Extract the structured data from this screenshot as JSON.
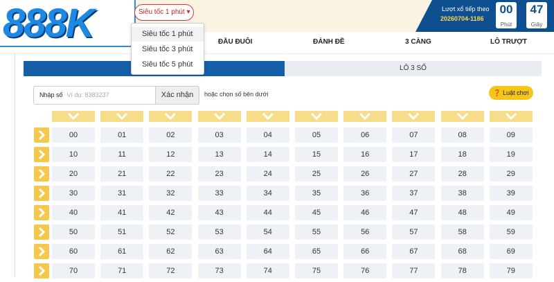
{
  "logo": {
    "text": "888K"
  },
  "dropdown": {
    "selected": "Siêu tốc 1 phút",
    "options": [
      "Siêu tốc 1 phút",
      "Siêu tốc 3 phút",
      "Siêu tốc 5 phút"
    ]
  },
  "countdown": {
    "label": "Lượt xổ tiếp theo",
    "draw_id": "20260704-1186",
    "minutes": "00",
    "minutes_label": "Phút",
    "seconds": "47",
    "seconds_label": "Giây"
  },
  "menu": [
    "ĐẦU ĐUÔI",
    "ĐÁNH ĐỀ",
    "3 CÀNG",
    "LÔ TRƯỢT"
  ],
  "sub_tabs": [
    "LÔ 3 SỐ"
  ],
  "input": {
    "label": "Nhập số",
    "placeholder": "Ví dụ: 8383237",
    "button": "Xác nhận",
    "hint_prefix": "hoặc",
    "hint": "chọn số bên dưới"
  },
  "rules_button": "Luật chơi",
  "grid": [
    [
      "00",
      "01",
      "02",
      "03",
      "04",
      "05",
      "06",
      "07",
      "08",
      "09"
    ],
    [
      "10",
      "11",
      "12",
      "13",
      "14",
      "15",
      "16",
      "17",
      "18",
      "19"
    ],
    [
      "20",
      "21",
      "22",
      "23",
      "24",
      "25",
      "26",
      "27",
      "28",
      "29"
    ],
    [
      "30",
      "31",
      "32",
      "33",
      "34",
      "35",
      "36",
      "37",
      "38",
      "39"
    ],
    [
      "40",
      "41",
      "42",
      "43",
      "44",
      "45",
      "46",
      "47",
      "48",
      "49"
    ],
    [
      "50",
      "51",
      "52",
      "53",
      "54",
      "55",
      "56",
      "57",
      "58",
      "59"
    ],
    [
      "60",
      "61",
      "62",
      "63",
      "64",
      "65",
      "66",
      "67",
      "68",
      "69"
    ],
    [
      "70",
      "71",
      "72",
      "73",
      "74",
      "75",
      "76",
      "77",
      "78",
      "79"
    ]
  ]
}
